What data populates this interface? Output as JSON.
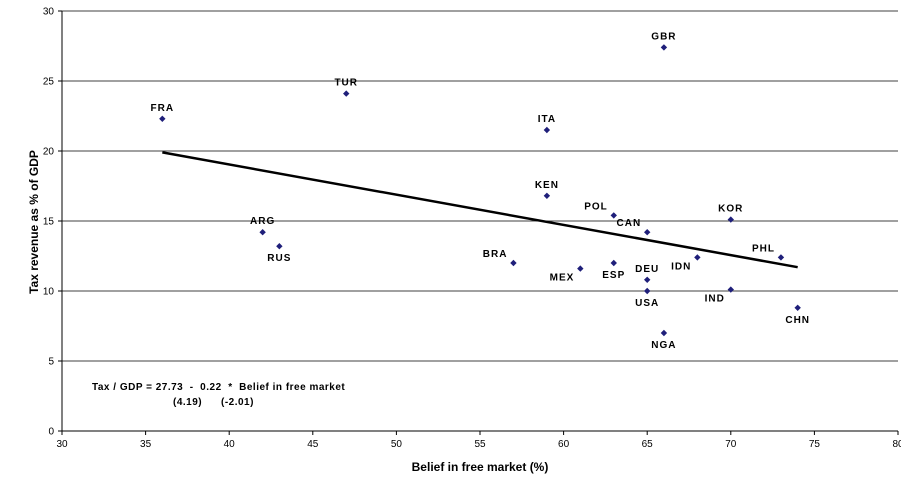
{
  "chart_data": {
    "type": "scatter",
    "xlabel": "Belief in free market (%)",
    "ylabel": "Tax revenue as % of GDP",
    "xlim": [
      30,
      80
    ],
    "ylim": [
      0,
      30
    ],
    "xticks": [
      30,
      35,
      40,
      45,
      50,
      55,
      60,
      65,
      70,
      75,
      80
    ],
    "yticks": [
      0,
      5,
      10,
      15,
      20,
      25,
      30
    ],
    "grid": "horizontal",
    "marker_color": "#1F1F7A",
    "points": [
      {
        "label": "GBR",
        "x": 66,
        "y": 27.4,
        "pos": "above"
      },
      {
        "label": "TUR",
        "x": 47,
        "y": 24.1,
        "pos": "above"
      },
      {
        "label": "FRA",
        "x": 36,
        "y": 22.3,
        "pos": "above"
      },
      {
        "label": "ITA",
        "x": 59,
        "y": 21.5,
        "pos": "above"
      },
      {
        "label": "KEN",
        "x": 59,
        "y": 16.8,
        "pos": "above"
      },
      {
        "label": "POL",
        "x": 63,
        "y": 15.4,
        "pos": "above-left"
      },
      {
        "label": "KOR",
        "x": 70,
        "y": 15.1,
        "pos": "above"
      },
      {
        "label": "CAN",
        "x": 65,
        "y": 14.2,
        "pos": "above-left"
      },
      {
        "label": "ARG",
        "x": 42,
        "y": 14.2,
        "pos": "above"
      },
      {
        "label": "RUS",
        "x": 43,
        "y": 13.2,
        "pos": "below"
      },
      {
        "label": "PHL",
        "x": 73,
        "y": 12.4,
        "pos": "above-left"
      },
      {
        "label": "IDN",
        "x": 68,
        "y": 12.4,
        "pos": "below-left"
      },
      {
        "label": "BRA",
        "x": 57,
        "y": 12.0,
        "pos": "above-left"
      },
      {
        "label": "ESP",
        "x": 63,
        "y": 12.0,
        "pos": "below"
      },
      {
        "label": "MEX",
        "x": 61,
        "y": 11.6,
        "pos": "below-left"
      },
      {
        "label": "DEU",
        "x": 65,
        "y": 10.8,
        "pos": "above"
      },
      {
        "label": "IND",
        "x": 70,
        "y": 10.1,
        "pos": "below-left"
      },
      {
        "label": "USA",
        "x": 65,
        "y": 10.0,
        "pos": "below"
      },
      {
        "label": "CHN",
        "x": 74,
        "y": 8.8,
        "pos": "below"
      },
      {
        "label": "NGA",
        "x": 66,
        "y": 7.0,
        "pos": "below"
      }
    ],
    "trendline": {
      "x": [
        36,
        74
      ],
      "y": [
        19.9,
        11.7
      ]
    },
    "annotation": {
      "line1": "Tax / GDP = 27.73  -  0.22  *  Belief in free market",
      "line2_a": "(4.19)",
      "line2_b": "(-2.01)"
    }
  }
}
